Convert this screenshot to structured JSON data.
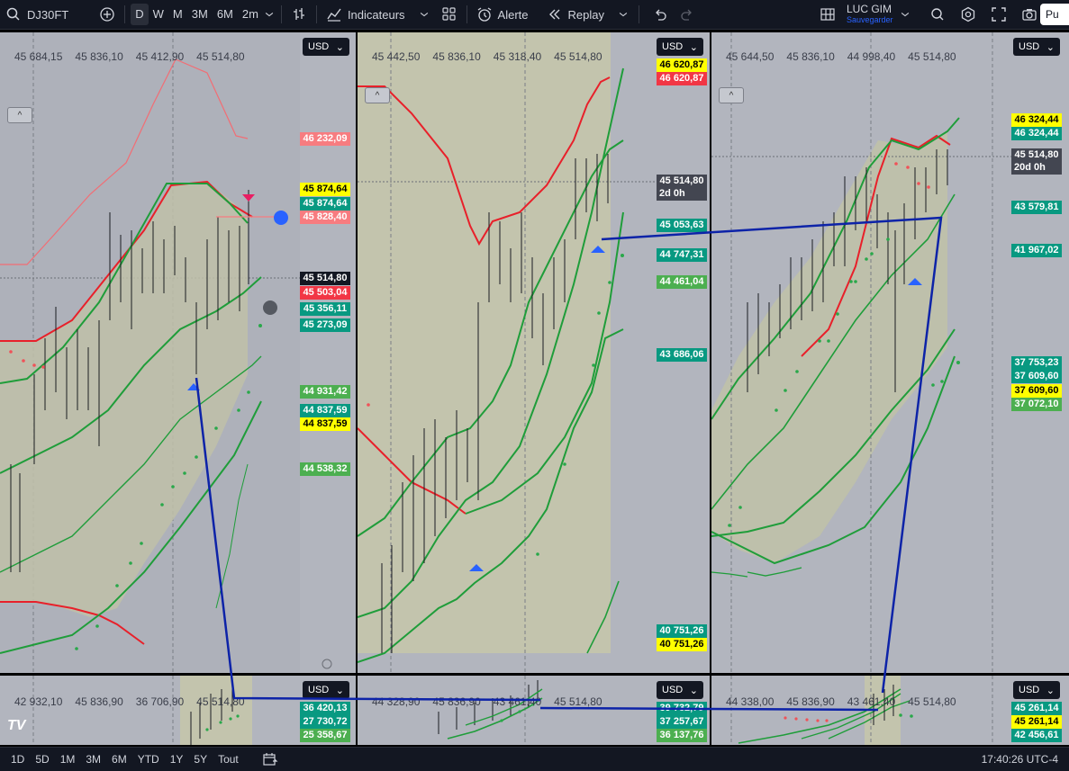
{
  "toolbar": {
    "symbol": "DJ30FT",
    "timeframes": [
      "D",
      "W",
      "M",
      "3M",
      "6M",
      "2m"
    ],
    "active_timeframe": "D",
    "indicators_label": "Indicateurs",
    "alert_label": "Alerte",
    "replay_label": "Replay",
    "user_name": "LUC GIM",
    "save_label": "Sauvegarder",
    "publish_label": "Pu"
  },
  "panes": [
    {
      "ohlc": [
        "45 684,15",
        "45 836,10",
        "45 412,90",
        "45 514,80"
      ],
      "currency": "USD",
      "price_labels": [
        {
          "text": "46 232,09",
          "bg": "#f77c80",
          "fg": "#ffffff"
        },
        {
          "text": "45 874,64",
          "bg": "#ffff00",
          "fg": "#000000"
        },
        {
          "text": "45 874,64",
          "bg": "#089981",
          "fg": "#ffffff"
        },
        {
          "text": "45 828,40",
          "bg": "#f77c80",
          "fg": "#ffffff"
        },
        {
          "text": "45 514,80",
          "bg": "#131722",
          "fg": "#ffffff"
        },
        {
          "text": "45 503,04",
          "bg": "#f23645",
          "fg": "#ffffff"
        },
        {
          "text": "45 356,11",
          "bg": "#089981",
          "fg": "#ffffff"
        },
        {
          "text": "45 273,09",
          "bg": "#089981",
          "fg": "#ffffff"
        },
        {
          "text": "44 931,42",
          "bg": "#4caf50",
          "fg": "#ffffff"
        },
        {
          "text": "44 837,59",
          "bg": "#089981",
          "fg": "#ffffff"
        },
        {
          "text": "44 837,59",
          "bg": "#ffff00",
          "fg": "#000000"
        },
        {
          "text": "44 538,32",
          "bg": "#4caf50",
          "fg": "#ffffff"
        }
      ]
    },
    {
      "ohlc": [
        "45 442,50",
        "45 836,10",
        "45 318,40",
        "45 514,80"
      ],
      "currency": "USD",
      "price_labels": [
        {
          "text": "46 620,87",
          "bg": "#ffff00",
          "fg": "#000000"
        },
        {
          "text": "46 620,87",
          "bg": "#f23645",
          "fg": "#ffffff"
        },
        {
          "text": "45 514,80",
          "bg": "#434651",
          "fg": "#ffffff"
        },
        {
          "text": "2d 0h",
          "bg": "#434651",
          "fg": "#ffffff"
        },
        {
          "text": "45 053,63",
          "bg": "#089981",
          "fg": "#ffffff"
        },
        {
          "text": "44 747,31",
          "bg": "#089981",
          "fg": "#ffffff"
        },
        {
          "text": "44 461,04",
          "bg": "#4caf50",
          "fg": "#ffffff"
        },
        {
          "text": "43 686,06",
          "bg": "#089981",
          "fg": "#ffffff"
        },
        {
          "text": "40 751,26",
          "bg": "#089981",
          "fg": "#ffffff"
        },
        {
          "text": "40 751,26",
          "bg": "#ffff00",
          "fg": "#000000"
        }
      ]
    },
    {
      "ohlc": [
        "45 644,50",
        "45 836,10",
        "44 998,40",
        "45 514,80"
      ],
      "currency": "USD",
      "price_labels": [
        {
          "text": "46 324,44",
          "bg": "#ffff00",
          "fg": "#000000"
        },
        {
          "text": "46 324,44",
          "bg": "#089981",
          "fg": "#ffffff"
        },
        {
          "text": "45 514,80",
          "bg": "#434651",
          "fg": "#ffffff"
        },
        {
          "text": "20d 0h",
          "bg": "#434651",
          "fg": "#ffffff"
        },
        {
          "text": "43 579,81",
          "bg": "#089981",
          "fg": "#ffffff"
        },
        {
          "text": "41 967,02",
          "bg": "#089981",
          "fg": "#ffffff"
        },
        {
          "text": "37 753,23",
          "bg": "#089981",
          "fg": "#ffffff"
        },
        {
          "text": "37 609,60",
          "bg": "#089981",
          "fg": "#ffffff"
        },
        {
          "text": "37 609,60",
          "bg": "#ffff00",
          "fg": "#000000"
        },
        {
          "text": "37 072,10",
          "bg": "#4caf50",
          "fg": "#ffffff"
        }
      ]
    },
    {
      "ohlc": [
        "42 932,10",
        "45 836,90",
        "36 706,90",
        "45 514,80"
      ],
      "currency": "USD",
      "price_labels": [
        {
          "text": "36 420,13",
          "bg": "#089981",
          "fg": "#ffffff"
        },
        {
          "text": "27 730,72",
          "bg": "#089981",
          "fg": "#ffffff"
        },
        {
          "text": "25 358,67",
          "bg": "#4caf50",
          "fg": "#ffffff"
        }
      ]
    },
    {
      "ohlc": [
        "44 328,90",
        "45 836,90",
        "43 461,40",
        "45 514,80"
      ],
      "currency": "USD",
      "price_labels": [
        {
          "text": "39 732,79",
          "bg": "#089981",
          "fg": "#ffffff"
        },
        {
          "text": "37 257,67",
          "bg": "#089981",
          "fg": "#ffffff"
        },
        {
          "text": "36 137,76",
          "bg": "#4caf50",
          "fg": "#ffffff"
        }
      ]
    },
    {
      "ohlc": [
        "44 338,00",
        "45 836,90",
        "43 461,40",
        "45 514,80"
      ],
      "currency": "USD",
      "price_labels": [
        {
          "text": "45 261,14",
          "bg": "#089981",
          "fg": "#ffffff"
        },
        {
          "text": "45 261,14",
          "bg": "#ffff00",
          "fg": "#000000"
        },
        {
          "text": "42 456,61",
          "bg": "#089981",
          "fg": "#ffffff"
        }
      ]
    }
  ],
  "bottombar": {
    "ranges": [
      "1D",
      "5D",
      "1M",
      "3M",
      "6M",
      "YTD",
      "1Y",
      "5Y",
      "Tout"
    ],
    "clock": "17:40:26 UTC-4"
  },
  "logo_text": "TV"
}
